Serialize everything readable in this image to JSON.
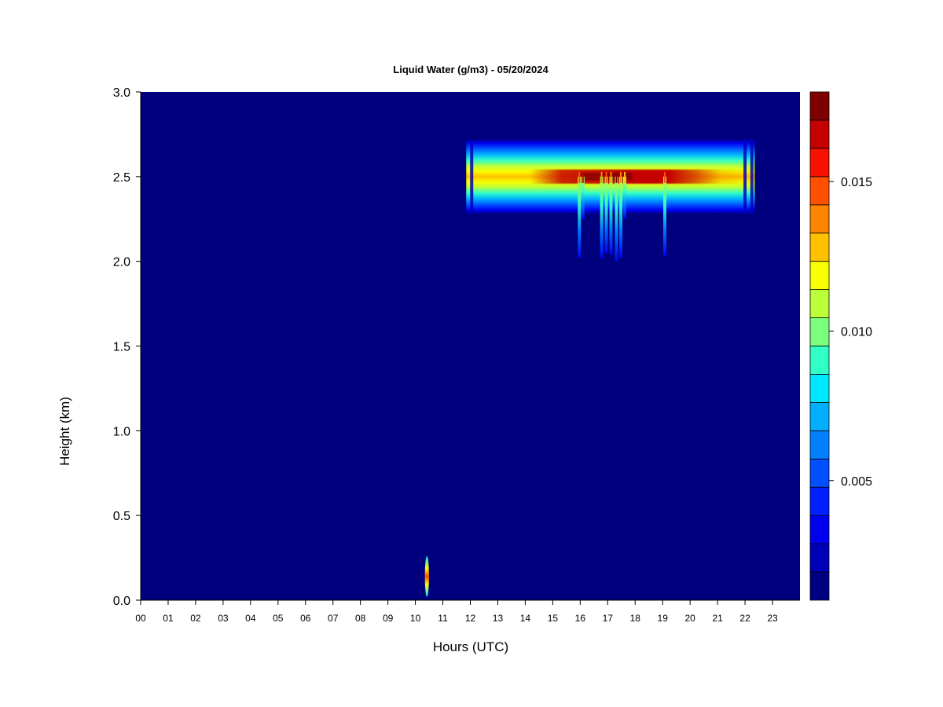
{
  "chart_data": {
    "type": "heatmap",
    "title": "Liquid Water (g/m3) - 05/20/2024",
    "xlabel": "Hours (UTC)",
    "ylabel": "Height (km)",
    "xlim": [
      0,
      24
    ],
    "ylim": [
      0,
      3.0
    ],
    "x_ticks": [
      "00",
      "01",
      "02",
      "03",
      "04",
      "05",
      "06",
      "07",
      "08",
      "09",
      "10",
      "11",
      "12",
      "13",
      "14",
      "15",
      "16",
      "17",
      "18",
      "19",
      "20",
      "21",
      "22",
      "23"
    ],
    "y_ticks": [
      "0.0",
      "0.5",
      "1.0",
      "1.5",
      "2.0",
      "2.5",
      "3.0"
    ],
    "background_color": "#00007f",
    "colorbar": {
      "range": [
        0.001,
        0.018
      ],
      "tick_labels": [
        "0.005",
        "0.010",
        "0.015"
      ],
      "tick_values": [
        0.005,
        0.01,
        0.015
      ],
      "colors": [
        "#000085",
        "#0000b8",
        "#0000f0",
        "#0020ff",
        "#0050ff",
        "#0080ff",
        "#00b0ff",
        "#00e8ff",
        "#30ffc8",
        "#7cff7c",
        "#bcff38",
        "#f8ff00",
        "#ffc000",
        "#ff8400",
        "#ff5000",
        "#f81200",
        "#c40000",
        "#800000"
      ]
    },
    "features": [
      {
        "name": "cloud layer",
        "start_hour": 11.85,
        "end_hour": 22.35,
        "center_height_km": 2.5,
        "top_km": 2.72,
        "base_km": 2.28,
        "peak_value": 0.017,
        "gaps_hours": [
          12.05,
          22.0,
          22.25
        ]
      },
      {
        "name": "drizzle streak",
        "hour": 15.97,
        "base_km": 2.02,
        "value": 0.009
      },
      {
        "name": "drizzle streak",
        "hour": 16.1,
        "base_km": 2.25,
        "value": 0.011
      },
      {
        "name": "drizzle streak",
        "hour": 16.78,
        "base_km": 2.02,
        "value": 0.008
      },
      {
        "name": "drizzle streak",
        "hour": 16.95,
        "base_km": 2.05,
        "value": 0.009
      },
      {
        "name": "drizzle streak",
        "hour": 17.12,
        "base_km": 2.04,
        "value": 0.008
      },
      {
        "name": "drizzle streak",
        "hour": 17.32,
        "base_km": 2.0,
        "value": 0.012
      },
      {
        "name": "drizzle streak",
        "hour": 17.48,
        "base_km": 2.02,
        "value": 0.008
      },
      {
        "name": "drizzle streak",
        "hour": 17.62,
        "base_km": 2.25,
        "value": 0.007
      },
      {
        "name": "drizzle streak",
        "hour": 19.08,
        "base_km": 2.03,
        "value": 0.009
      },
      {
        "name": "near-surface spike",
        "hour": 10.42,
        "base_km": 0.02,
        "top_km": 0.26,
        "value": 0.015
      }
    ]
  }
}
